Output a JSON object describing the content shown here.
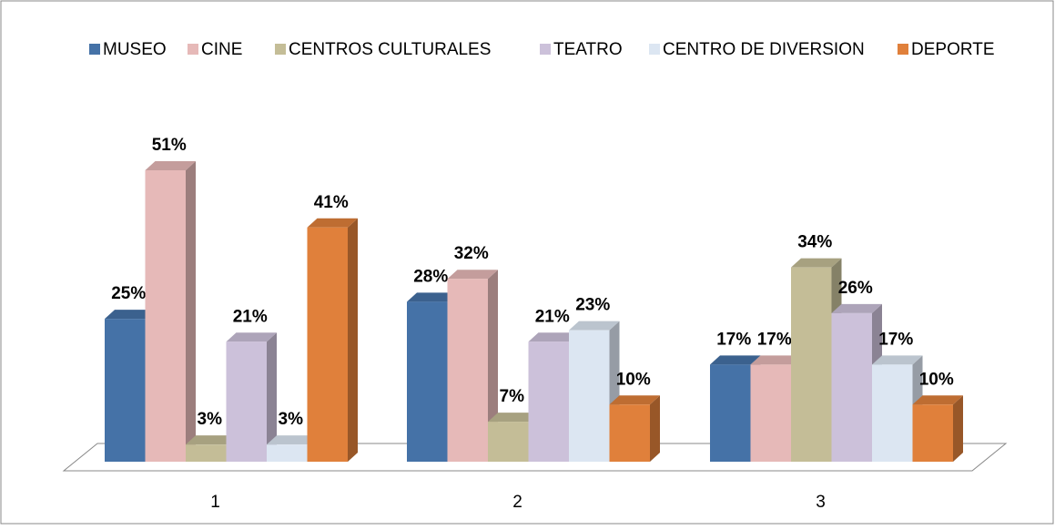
{
  "chart_data": {
    "type": "bar3d",
    "categories": [
      "1",
      "2",
      "3"
    ],
    "series": [
      {
        "name": "MUSEO",
        "color": "#4572a7",
        "values": [
          25,
          28,
          17
        ],
        "value_labels": [
          "25%",
          "28%",
          "17%"
        ]
      },
      {
        "name": "CINE",
        "color": "#e6b9b8",
        "values": [
          51,
          32,
          17
        ],
        "value_labels": [
          "51%",
          "32%",
          "17%"
        ]
      },
      {
        "name": "CENTROS CULTURALES",
        "color": "#c4bd97",
        "values": [
          3,
          7,
          34
        ],
        "value_labels": [
          "3%",
          "7%",
          "34%"
        ]
      },
      {
        "name": "TEATRO",
        "color": "#ccc1da",
        "values": [
          21,
          21,
          26
        ],
        "value_labels": [
          "21%",
          "21%",
          "26%"
        ]
      },
      {
        "name": "CENTRO DE DIVERSION",
        "color": "#dce6f2",
        "values": [
          3,
          23,
          17
        ],
        "value_labels": [
          "3%",
          "23%",
          "17%"
        ]
      },
      {
        "name": "DEPORTE",
        "color": "#e0803b",
        "values": [
          41,
          10,
          10
        ],
        "value_labels": [
          "41%",
          "10%",
          "10%"
        ]
      }
    ],
    "legend": "top"
  }
}
